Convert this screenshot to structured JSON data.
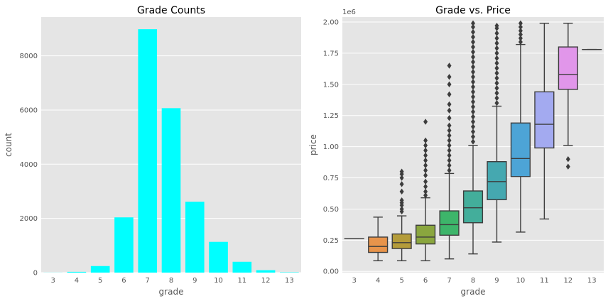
{
  "chart_data": [
    {
      "type": "bar",
      "title": "Grade Counts",
      "xlabel": "grade",
      "ylabel": "count",
      "categories": [
        "3",
        "4",
        "5",
        "6",
        "7",
        "8",
        "9",
        "10",
        "11",
        "12",
        "13"
      ],
      "values": [
        3,
        29,
        242,
        2038,
        8981,
        6068,
        2615,
        1134,
        399,
        89,
        13
      ],
      "ylim": [
        0,
        9430
      ],
      "yticks": [
        0,
        2000,
        4000,
        6000,
        8000
      ],
      "ytick_labels": [
        "0",
        "2000",
        "4000",
        "6000",
        "8000"
      ],
      "bar_color": "#00ffff",
      "background": "#e5e5e5",
      "grid": true
    },
    {
      "type": "box",
      "title": "Grade vs. Price",
      "xlabel": "grade",
      "ylabel": "price",
      "offset_label": "1e6",
      "categories": [
        "3",
        "4",
        "5",
        "6",
        "7",
        "8",
        "9",
        "10",
        "11",
        "12",
        "13"
      ],
      "ylim": [
        -0.01,
        2.04
      ],
      "yticks": [
        0.0,
        0.25,
        0.5,
        0.75,
        1.0,
        1.25,
        1.5,
        1.75,
        2.0
      ],
      "ytick_labels": [
        "0.00",
        "0.25",
        "0.50",
        "0.75",
        "1.00",
        "1.25",
        "1.50",
        "1.75",
        "2.00"
      ],
      "grid": true,
      "background": "#e5e5e5",
      "boxes": [
        {
          "category": "3",
          "color": "#4c72b0",
          "q1": 0.262,
          "median": 0.262,
          "q3": 0.262,
          "whislo": 0.262,
          "whishi": 0.262,
          "fliers": []
        },
        {
          "category": "4",
          "color": "#e8944b",
          "q1": 0.152,
          "median": 0.2,
          "q3": 0.275,
          "whislo": 0.085,
          "whishi": 0.435,
          "fliers": []
        },
        {
          "category": "5",
          "color": "#b49c3a",
          "q1": 0.183,
          "median": 0.23,
          "q3": 0.3,
          "whislo": 0.085,
          "whishi": 0.445,
          "fliers": [
            0.48,
            0.5,
            0.53,
            0.55,
            0.57,
            0.64,
            0.7,
            0.75,
            0.78,
            0.8
          ]
        },
        {
          "category": "6",
          "color": "#8aa63e",
          "q1": 0.22,
          "median": 0.275,
          "q3": 0.37,
          "whislo": 0.085,
          "whishi": 0.59,
          "fliers": [
            0.61,
            0.64,
            0.68,
            0.72,
            0.77,
            0.81,
            0.85,
            0.89,
            0.93,
            0.97,
            1.01,
            1.05,
            1.2
          ]
        },
        {
          "category": "7",
          "color": "#3db56a",
          "q1": 0.29,
          "median": 0.375,
          "q3": 0.485,
          "whislo": 0.1,
          "whishi": 0.785,
          "fliers": [
            0.81,
            0.85,
            0.89,
            0.93,
            0.97,
            1.01,
            1.05,
            1.09,
            1.13,
            1.17,
            1.23,
            1.29,
            1.34,
            1.42,
            1.5,
            1.56,
            1.65
          ]
        },
        {
          "category": "8",
          "color": "#43ae9b",
          "q1": 0.39,
          "median": 0.51,
          "q3": 0.645,
          "whislo": 0.14,
          "whishi": 1.01,
          "fliers": [
            1.04,
            1.08,
            1.12,
            1.16,
            1.2,
            1.24,
            1.28,
            1.32,
            1.36,
            1.4,
            1.44,
            1.48,
            1.52,
            1.56,
            1.6,
            1.64,
            1.68,
            1.72,
            1.76,
            1.8,
            1.84,
            1.88,
            1.92,
            1.96,
            1.99
          ]
        },
        {
          "category": "9",
          "color": "#45a8b0",
          "q1": 0.575,
          "median": 0.72,
          "q3": 0.88,
          "whislo": 0.235,
          "whishi": 1.325,
          "fliers": [
            1.35,
            1.39,
            1.43,
            1.47,
            1.51,
            1.55,
            1.59,
            1.63,
            1.67,
            1.71,
            1.75,
            1.79,
            1.83,
            1.87,
            1.91,
            1.95,
            1.97
          ]
        },
        {
          "category": "10",
          "color": "#4da4d6",
          "q1": 0.76,
          "median": 0.905,
          "q3": 1.19,
          "whislo": 0.315,
          "whishi": 1.82,
          "fliers": [
            1.84,
            1.87,
            1.9,
            1.93,
            1.96,
            1.99
          ]
        },
        {
          "category": "11",
          "color": "#a3aaf0",
          "q1": 0.99,
          "median": 1.18,
          "q3": 1.44,
          "whislo": 0.42,
          "whishi": 1.99,
          "fliers": []
        },
        {
          "category": "12",
          "color": "#e196ea",
          "q1": 1.46,
          "median": 1.58,
          "q3": 1.8,
          "whislo": 1.01,
          "whishi": 1.99,
          "fliers": [
            0.84,
            0.9
          ]
        },
        {
          "category": "13",
          "color": "#ff69b4",
          "q1": 1.78,
          "median": 1.78,
          "q3": 1.78,
          "whislo": 1.78,
          "whishi": 1.78,
          "fliers": []
        }
      ]
    }
  ]
}
